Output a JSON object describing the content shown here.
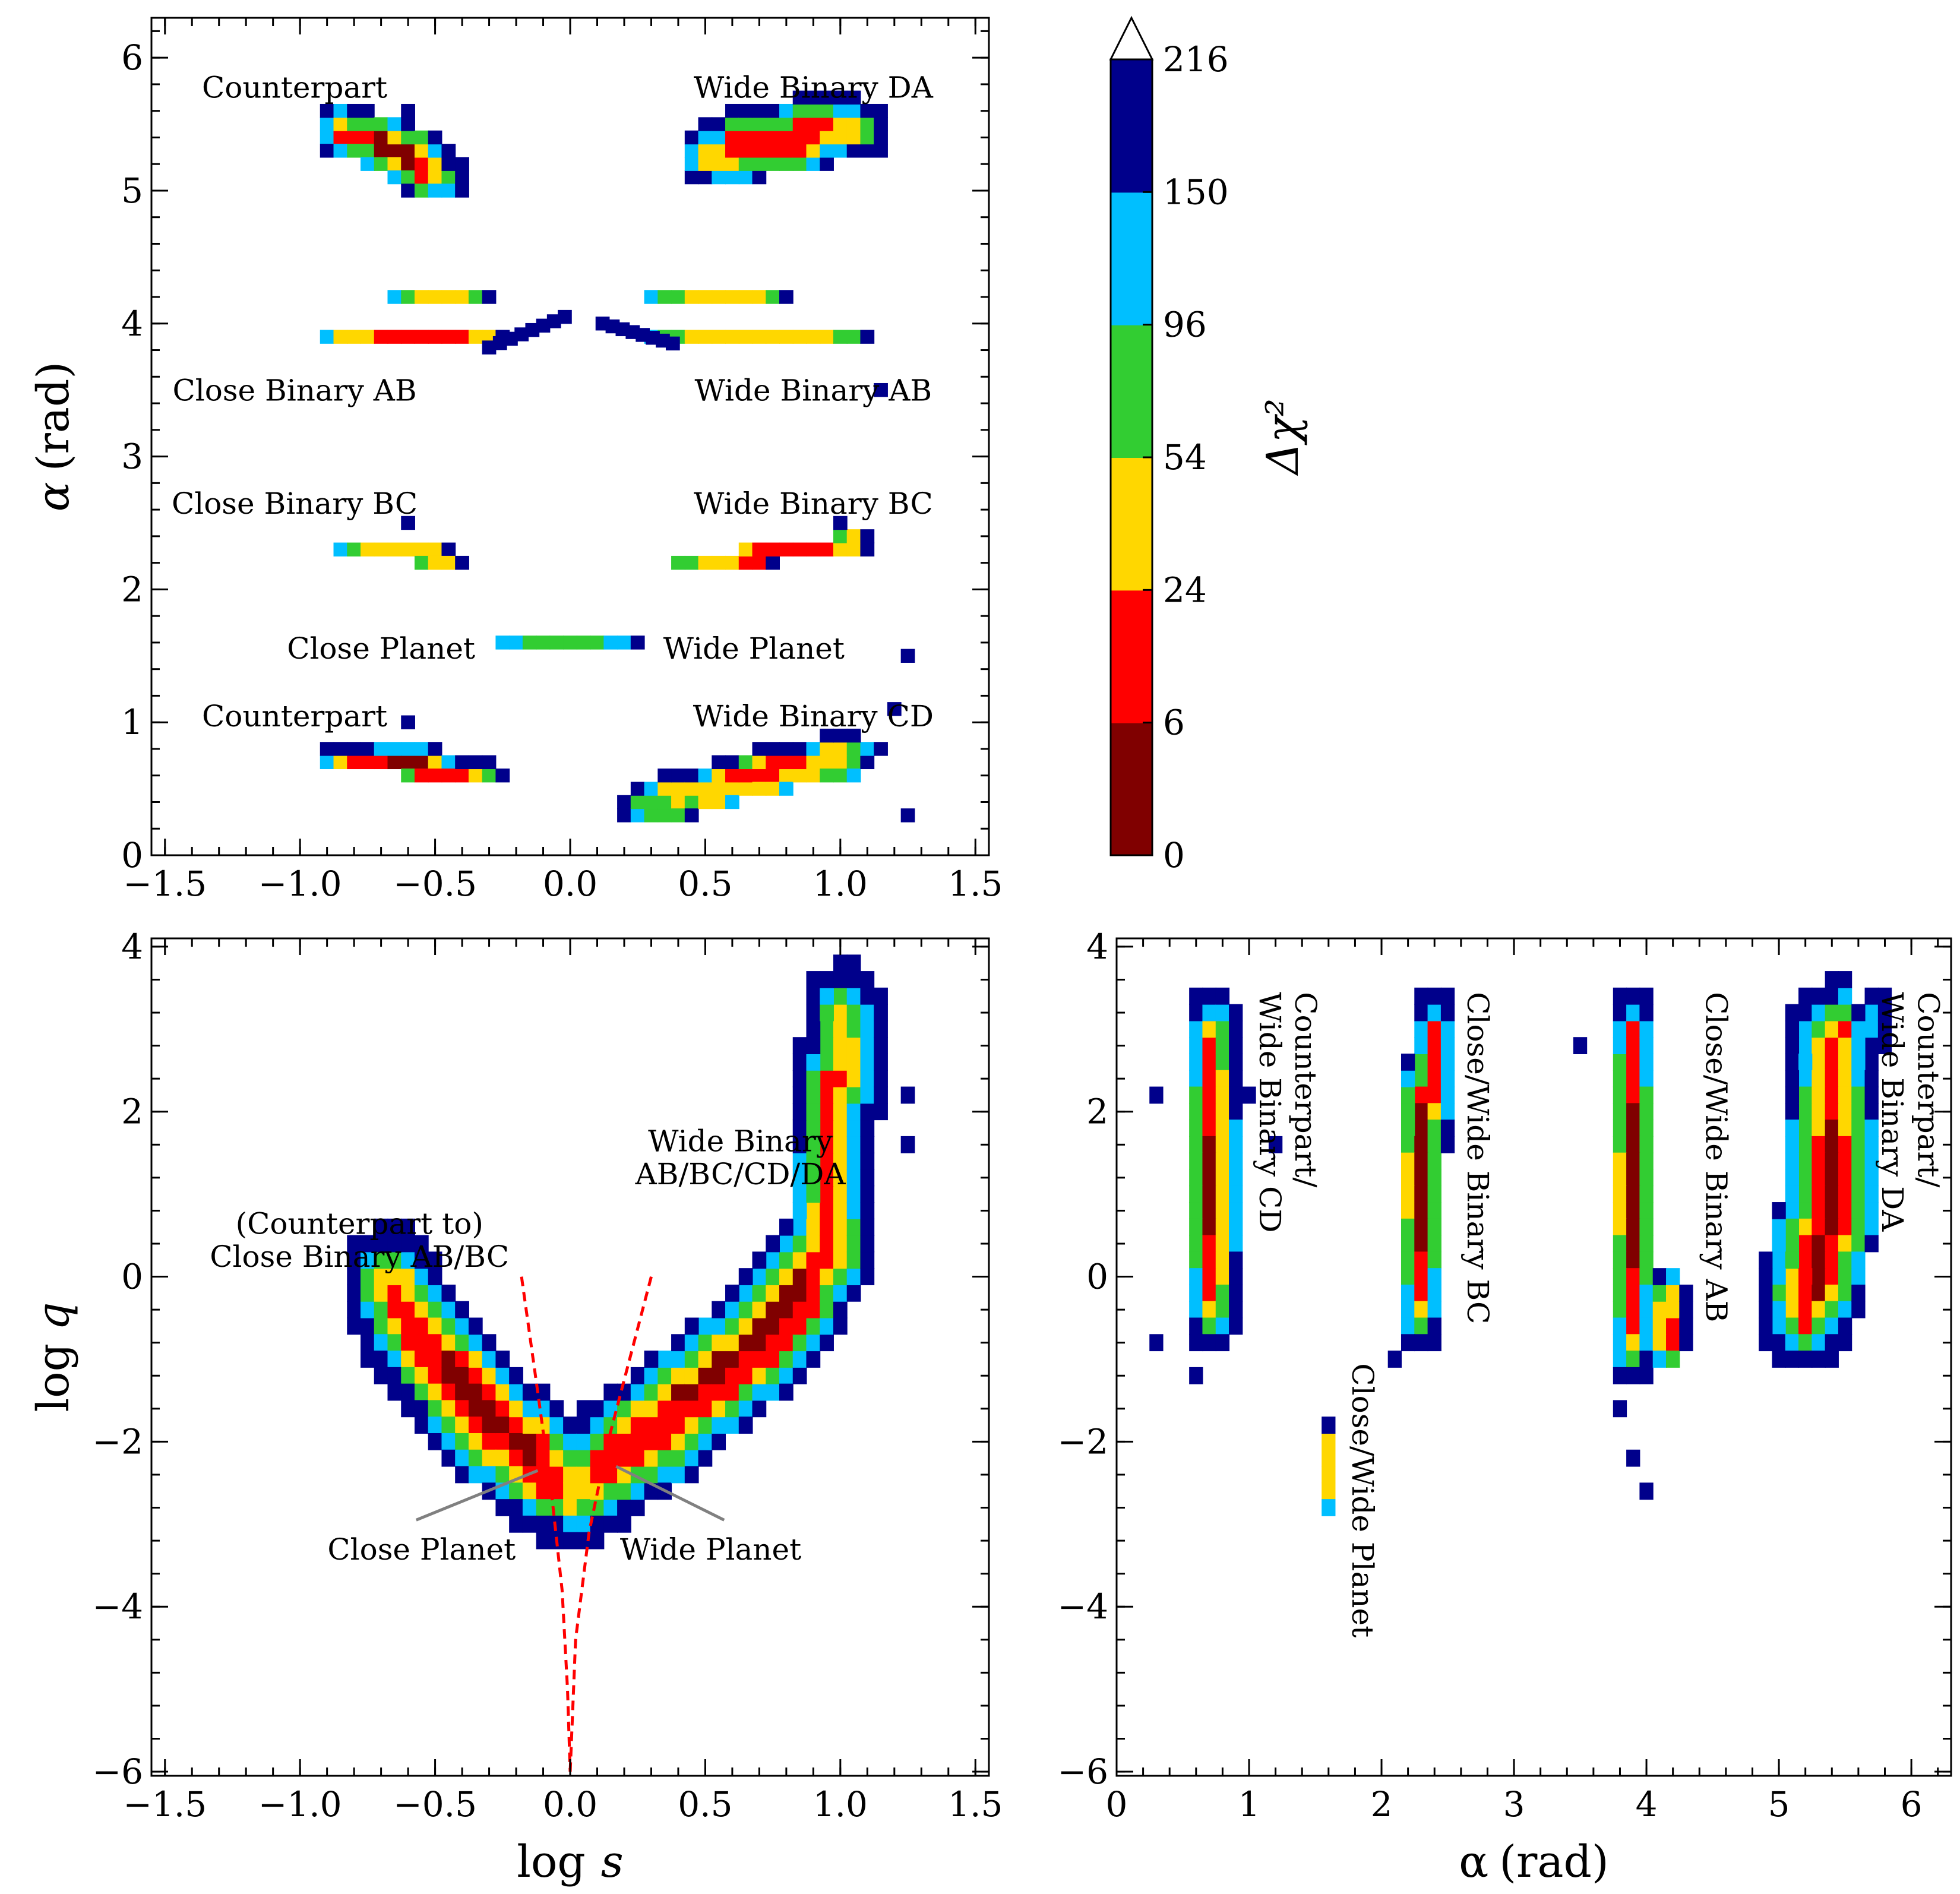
{
  "colors": {
    "bins": [
      "#800000",
      "#ff0000",
      "#ffd700",
      "#32cd32",
      "#00bfff",
      "#00008b"
    ],
    "curve": "#ff0000",
    "leader": "#808080"
  },
  "colorbar": {
    "label": "Δχ²",
    "boundaries": [
      0,
      6,
      24,
      54,
      96,
      150,
      216
    ],
    "tick_labels": [
      "0",
      "6",
      "24",
      "54",
      "96",
      "150",
      "216"
    ],
    "extend": "max"
  },
  "chart_data": [
    {
      "id": "top",
      "type": "heatmap",
      "xlabel": "",
      "ylabel_main": "α",
      "ylabel_unit": "(rad)",
      "xlim": [
        -1.55,
        1.55
      ],
      "ylim": [
        0,
        6.3
      ],
      "xticks": [
        -1.5,
        -1.0,
        -0.5,
        0.0,
        0.5,
        1.0,
        1.5
      ],
      "xtick_labels": [
        "−1.5",
        "−1.0",
        "−0.5",
        "0.0",
        "0.5",
        "1.0",
        "1.5"
      ],
      "yticks": [
        0,
        1,
        2,
        3,
        4,
        5,
        6
      ],
      "ytick_labels": [
        "0",
        "1",
        "2",
        "3",
        "4",
        "5",
        "6"
      ],
      "cell": [
        0.05,
        0.1
      ],
      "blobs": [
        {
          "p": [
            [
              -0.85,
              5.45
            ],
            [
              -0.62,
              5.3
            ],
            [
              -0.5,
              5.05
            ]
          ],
          "w": 0.07,
          "h": 0.12
        },
        {
          "p": [
            [
              0.5,
              5.25
            ],
            [
              0.8,
              5.38
            ],
            [
              1.05,
              5.5
            ]
          ],
          "w": 0.07,
          "h": 0.16
        },
        {
          "p": [
            [
              -0.85,
              3.9
            ],
            [
              -0.55,
              3.88
            ],
            [
              -0.3,
              3.9
            ]
          ],
          "w": 0.06,
          "h": 0.05
        },
        {
          "p": [
            [
              -0.6,
              4.2
            ],
            [
              -0.5,
              4.22
            ],
            [
              -0.38,
              4.2
            ]
          ],
          "w": 0.05,
          "h": 0.05
        },
        {
          "p": [
            [
              0.35,
              3.85
            ],
            [
              0.7,
              3.85
            ],
            [
              1.05,
              3.85
            ]
          ],
          "w": 0.05,
          "h": 0.05
        },
        {
          "p": [
            [
              0.35,
              4.15
            ],
            [
              0.55,
              4.2
            ],
            [
              0.75,
              4.2
            ]
          ],
          "w": 0.05,
          "h": 0.05
        },
        {
          "p": [
            [
              -0.82,
              2.32
            ],
            [
              -0.6,
              2.28
            ],
            [
              -0.45,
              2.2
            ]
          ],
          "w": 0.05,
          "h": 0.05
        },
        {
          "p": [
            [
              0.45,
              2.15
            ],
            [
              0.8,
              2.3
            ],
            [
              1.05,
              2.35
            ]
          ],
          "w": 0.05,
          "h": 0.06
        },
        {
          "p": [
            [
              -0.25,
              1.56
            ],
            [
              0.0,
              1.55
            ],
            [
              0.22,
              1.56
            ]
          ],
          "w": 0.04,
          "h": 0.04
        },
        {
          "p": [
            [
              -0.82,
              0.76
            ],
            [
              -0.58,
              0.68
            ],
            [
              -0.35,
              0.6
            ]
          ],
          "w": 0.07,
          "h": 0.07
        },
        {
          "p": [
            [
              0.3,
              0.35
            ],
            [
              0.7,
              0.6
            ],
            [
              1.05,
              0.75
            ]
          ],
          "w": 0.08,
          "h": 0.1
        }
      ],
      "extra_cells": [
        [
          1.15,
          3.55
        ],
        [
          1.2,
          1.05
        ],
        [
          1.25,
          1.52
        ],
        [
          1.25,
          0.32
        ],
        [
          1.0,
          2.55
        ],
        [
          -0.6,
          5.6
        ],
        [
          -0.6,
          2.45
        ],
        [
          -0.6,
          1.0
        ]
      ],
      "hatch_bars": [
        {
          "x0": -0.3,
          "x1": -0.02,
          "y0": 3.82,
          "y1": 4.05,
          "slope": true
        },
        {
          "x0": 0.12,
          "x1": 0.38,
          "y0": 3.85,
          "y1": 4.0,
          "slope": false
        }
      ],
      "labels": [
        {
          "text": "Counterpart",
          "x": -1.02,
          "y": 5.78
        },
        {
          "text": "Wide Binary DA",
          "x": 0.9,
          "y": 5.78
        },
        {
          "text": "Close Binary AB",
          "x": -1.02,
          "y": 3.5
        },
        {
          "text": "Wide Binary AB",
          "x": 0.9,
          "y": 3.5
        },
        {
          "text": "Close Binary BC",
          "x": -1.02,
          "y": 2.65
        },
        {
          "text": "Wide Binary BC",
          "x": 0.9,
          "y": 2.65
        },
        {
          "text": "Close Planet",
          "x": -0.7,
          "y": 1.56
        },
        {
          "text": "Wide Planet",
          "x": 0.68,
          "y": 1.56
        },
        {
          "text": "Counterpart",
          "x": -1.02,
          "y": 1.05
        },
        {
          "text": "Wide Binary CD",
          "x": 0.9,
          "y": 1.05
        }
      ]
    },
    {
      "id": "bottom-left",
      "type": "heatmap",
      "xlabel_main": "log",
      "xlabel_var": "s",
      "ylabel_main": "log",
      "ylabel_var": "q",
      "xlim": [
        -1.55,
        1.55
      ],
      "ylim": [
        -6.05,
        4.1
      ],
      "xticks": [
        -1.5,
        -1.0,
        -0.5,
        0.0,
        0.5,
        1.0,
        1.5
      ],
      "xtick_labels": [
        "−1.5",
        "−1.0",
        "−0.5",
        "0.0",
        "0.5",
        "1.0",
        "1.5"
      ],
      "yticks": [
        -6,
        -4,
        -2,
        0,
        2,
        4
      ],
      "ytick_labels": [
        "−6",
        "−4",
        "−2",
        "0",
        "2",
        "4"
      ],
      "cell": [
        0.05,
        0.2
      ],
      "blobs": [
        {
          "p": [
            [
              -0.7,
              0.0
            ],
            [
              -0.45,
              -1.2
            ],
            [
              -0.15,
              -2.2
            ],
            [
              0.0,
              -2.6
            ]
          ],
          "w": 0.1,
          "h": 0.45
        },
        {
          "p": [
            [
              0.0,
              -2.6
            ],
            [
              0.3,
              -1.9
            ],
            [
              0.7,
              -0.8
            ],
            [
              0.95,
              0.3
            ],
            [
              1.0,
              3.2
            ]
          ],
          "w": 0.1,
          "h": 0.45
        }
      ],
      "extra_cells": [
        [
          1.15,
          2.1
        ],
        [
          1.25,
          2.1
        ],
        [
          1.25,
          1.6
        ],
        [
          1.1,
          2.7
        ],
        [
          1.05,
          3.4
        ]
      ],
      "curves": [
        {
          "x": [
            -0.18,
            -0.12,
            -0.07,
            -0.03,
            -0.01,
            0.0
          ],
          "y": [
            0.0,
            -1.4,
            -2.6,
            -3.8,
            -5.0,
            -6.0
          ]
        },
        {
          "x": [
            0.3,
            0.22,
            0.14,
            0.07,
            0.02,
            0.0
          ],
          "y": [
            0.0,
            -1.0,
            -2.0,
            -3.1,
            -4.4,
            -6.0
          ]
        }
      ],
      "labels": [
        {
          "text": "(Counterpart to)",
          "x": -0.78,
          "y": 0.65
        },
        {
          "text": "Close Binary AB/BC",
          "x": -0.78,
          "y": 0.25
        },
        {
          "text": "Wide Binary",
          "x": 0.63,
          "y": 1.65
        },
        {
          "text": "AB/BC/CD/DA",
          "x": 0.63,
          "y": 1.25
        },
        {
          "text": "Close Planet",
          "x": -0.55,
          "y": -3.3
        },
        {
          "text": "Wide Planet",
          "x": 0.52,
          "y": -3.3
        }
      ],
      "leaders": [
        {
          "x": [
            -0.57,
            -0.12
          ],
          "y": [
            -2.95,
            -2.35
          ]
        },
        {
          "x": [
            0.57,
            0.17
          ],
          "y": [
            -2.95,
            -2.3
          ]
        }
      ]
    },
    {
      "id": "bottom-right",
      "type": "heatmap",
      "xlabel_main": "α",
      "xlabel_unit": "(rad)",
      "ylabel_main": "",
      "xlim": [
        0,
        6.3
      ],
      "ylim": [
        -6.05,
        4.1
      ],
      "xticks": [
        0,
        1,
        2,
        3,
        4,
        5,
        6
      ],
      "xtick_labels": [
        "0",
        "1",
        "2",
        "3",
        "4",
        "5",
        "6"
      ],
      "yticks": [
        -6,
        -4,
        -2,
        0,
        2,
        4
      ],
      "ytick_labels": [
        "−6",
        "−4",
        "−2",
        "0",
        "2",
        "4"
      ],
      "cell": [
        0.1,
        0.2
      ],
      "blobs": [
        {
          "p": [
            [
              0.7,
              3.0
            ],
            [
              0.7,
              1.0
            ],
            [
              0.68,
              -0.5
            ]
          ],
          "w": 0.14,
          "h": 0.35
        },
        {
          "p": [
            [
              2.35,
              3.0
            ],
            [
              2.33,
              1.0
            ],
            [
              2.3,
              -0.4
            ]
          ],
          "w": 0.12,
          "h": 0.35
        },
        {
          "p": [
            [
              3.85,
              3.0
            ],
            [
              3.85,
              1.0
            ],
            [
              3.85,
              -0.8
            ]
          ],
          "w": 0.12,
          "h": 0.35
        },
        {
          "p": [
            [
              4.2,
              -0.3
            ],
            [
              4.2,
              -0.8
            ]
          ],
          "w": 0.1,
          "h": 0.3
        },
        {
          "p": [
            [
              5.45,
              3.0
            ],
            [
              5.35,
              0.5
            ],
            [
              5.2,
              -0.5
            ]
          ],
          "w": 0.25,
          "h": 0.4
        },
        {
          "p": [
            [
              1.55,
              -2.0
            ],
            [
              1.55,
              -2.3
            ],
            [
              1.55,
              -2.6
            ]
          ],
          "w": 0.05,
          "h": 0.2
        }
      ],
      "extra_cells": [
        [
          0.3,
          2.1
        ],
        [
          1.0,
          2.1
        ],
        [
          1.2,
          1.6
        ],
        [
          2.5,
          1.6
        ],
        [
          3.55,
          2.7
        ],
        [
          5.3,
          2.7
        ],
        [
          3.95,
          -2.6
        ],
        [
          3.9,
          -2.2
        ],
        [
          3.75,
          -1.6
        ],
        [
          0.3,
          -0.8
        ],
        [
          0.6,
          -1.2
        ],
        [
          2.1,
          -1.1
        ],
        [
          5.0,
          -0.8
        ]
      ],
      "labels": [
        {
          "text": "Counterpart/",
          "x": 1.35,
          "y": 3.45,
          "rotate": 90
        },
        {
          "text": "Wide Binary CD",
          "x": 1.08,
          "y": 3.45,
          "rotate": 90
        },
        {
          "text": "Close/Wide Binary BC",
          "x": 2.65,
          "y": 3.45,
          "rotate": 90
        },
        {
          "text": "Close/Wide Binary AB",
          "x": 4.45,
          "y": 3.45,
          "rotate": 90
        },
        {
          "text": "Counterpart/",
          "x": 6.05,
          "y": 3.45,
          "rotate": 90
        },
        {
          "text": "Wide Binary DA",
          "x": 5.78,
          "y": 3.45,
          "rotate": 90
        },
        {
          "text": "Close/Wide Planet",
          "x": 1.78,
          "y": -1.05,
          "rotate": 90
        }
      ]
    }
  ]
}
